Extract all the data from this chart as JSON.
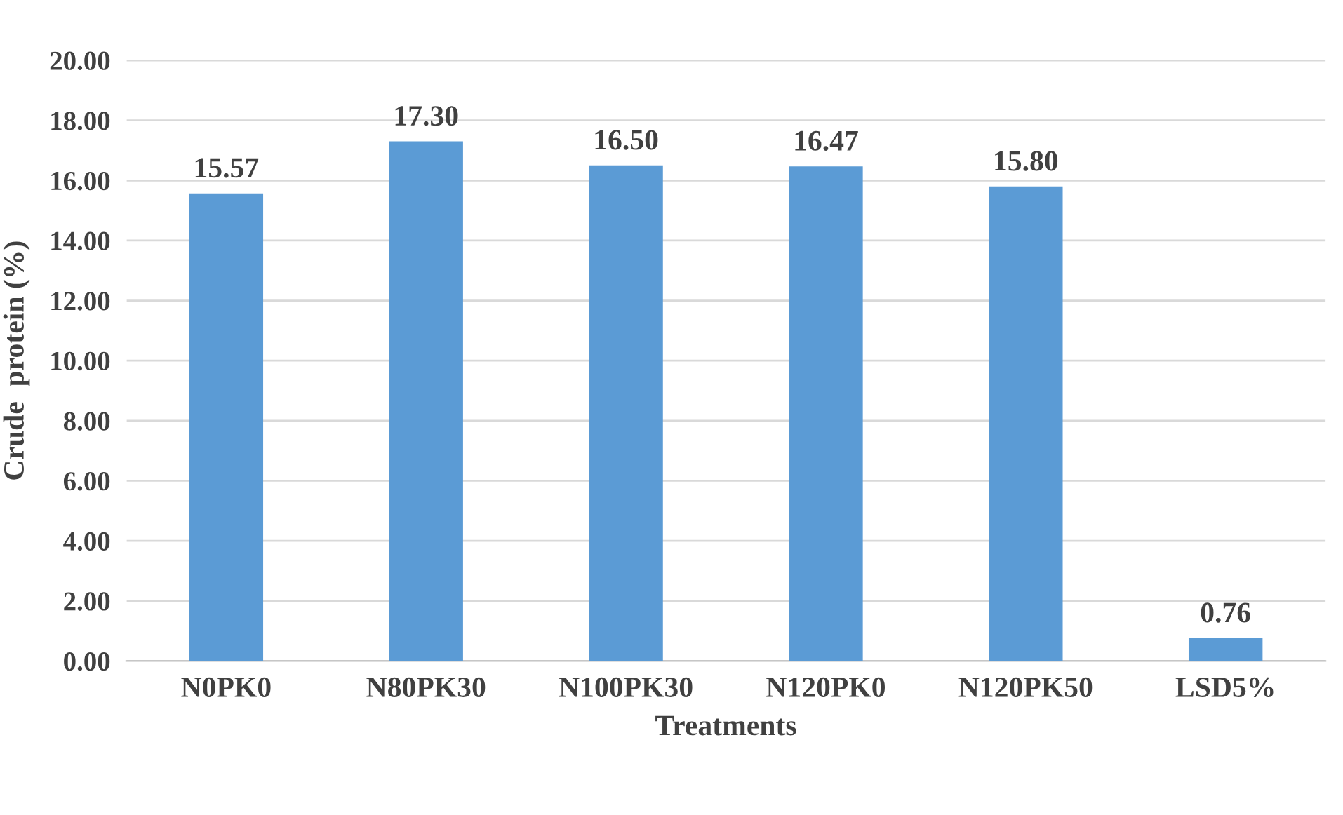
{
  "chart_data": {
    "type": "bar",
    "xlabel": "Treatments",
    "ylabel": "Crude  protein (%)",
    "categories": [
      "N0PK0",
      "N80PK30",
      "N100PK30",
      "N120PK0",
      "N120PK50",
      "LSD5%"
    ],
    "values": [
      15.57,
      17.3,
      16.5,
      16.47,
      15.8,
      0.76
    ],
    "value_labels": [
      "15.57",
      "17.30",
      "16.50",
      "16.47",
      "15.80",
      "0.76"
    ],
    "color": "#5b9bd5",
    "ylim": [
      0,
      20
    ],
    "yticks": [
      {
        "value": 0,
        "label": "0.00"
      },
      {
        "value": 2,
        "label": "2.00"
      },
      {
        "value": 4,
        "label": "4.00"
      },
      {
        "value": 6,
        "label": "6.00"
      },
      {
        "value": 8,
        "label": "8.00"
      },
      {
        "value": 10,
        "label": "10.00"
      },
      {
        "value": 12,
        "label": "12.00"
      },
      {
        "value": 14,
        "label": "14.00"
      },
      {
        "value": 16,
        "label": "16.00"
      },
      {
        "value": 18,
        "label": "18.00"
      },
      {
        "value": 20,
        "label": "20.00"
      }
    ],
    "grid": "y"
  }
}
